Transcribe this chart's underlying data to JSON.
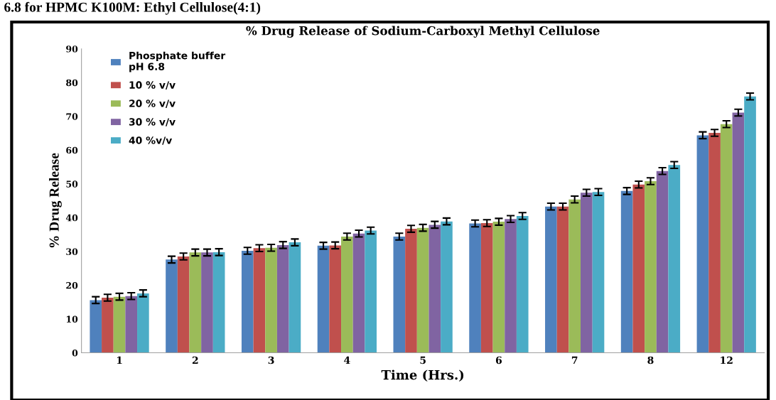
{
  "chart_data": {
    "type": "bar",
    "title": "% Drug Release of Sodium-Carboxyl Methyl Cellulose",
    "xlabel": "Time (Hrs.)",
    "ylabel": "% Drug Release",
    "annotations": [
      "6.8 for HPMC K100M: Ethyl Cellulose(4:1)"
    ],
    "categories": [
      "1",
      "2",
      "3",
      "4",
      "5",
      "6",
      "7",
      "8",
      "12"
    ],
    "series": [
      {
        "name": "Phosphate buffer\npH 6.8",
        "color": "#4f81bd",
        "values": [
          15.6,
          27.6,
          30.2,
          31.7,
          34.4,
          38.3,
          43.3,
          47.9,
          64.4
        ],
        "errors": [
          1,
          1,
          1,
          1,
          1,
          1,
          1,
          1,
          1
        ]
      },
      {
        "name": "10 % v/v",
        "color": "#c0504d",
        "values": [
          16.3,
          28.5,
          31.0,
          31.8,
          36.7,
          38.4,
          43.3,
          49.8,
          65.1
        ],
        "errors": [
          1,
          1,
          1,
          1,
          1,
          1,
          1,
          1,
          1
        ]
      },
      {
        "name": "20 % v/v",
        "color": "#9bbb59",
        "values": [
          16.6,
          29.7,
          31.1,
          34.4,
          37.0,
          38.8,
          45.4,
          50.8,
          67.7
        ],
        "errors": [
          1,
          1,
          1,
          1,
          1,
          1,
          1,
          1,
          1
        ]
      },
      {
        "name": "30 % v/v",
        "color": "#8064a2",
        "values": [
          16.8,
          29.7,
          31.9,
          35.3,
          37.9,
          39.6,
          47.4,
          53.8,
          71.1
        ],
        "errors": [
          1,
          1,
          1,
          1,
          1,
          1,
          1,
          1,
          1
        ]
      },
      {
        "name": "40 %v/v",
        "color": "#4bacc6",
        "values": [
          17.6,
          29.8,
          32.7,
          36.2,
          38.9,
          40.5,
          47.6,
          55.6,
          75.9
        ],
        "errors": [
          1,
          1,
          1,
          1,
          1,
          1,
          1,
          1,
          1
        ]
      }
    ],
    "ylim": [
      0,
      90
    ],
    "yticks": [
      0,
      10,
      20,
      30,
      40,
      50,
      60,
      70,
      80,
      90
    ],
    "grid": false,
    "legend": "top left"
  }
}
